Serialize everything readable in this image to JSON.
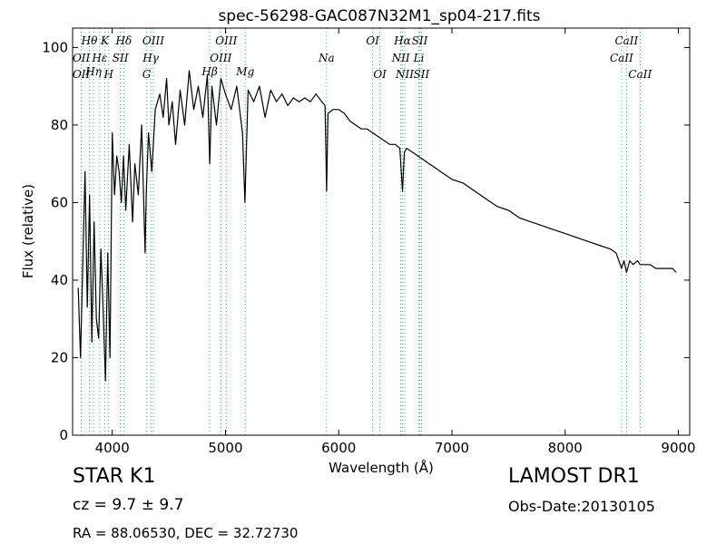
{
  "chart_data": {
    "type": "line",
    "title": "spec-56298-GAC087N32M1_sp04-217.fits",
    "xlabel": "Wavelength (Å)",
    "ylabel": "Flux (relative)",
    "xlim": [
      3650,
      9100
    ],
    "ylim": [
      0,
      105
    ],
    "xticks": [
      4000,
      5000,
      6000,
      7000,
      8000,
      9000
    ],
    "xtick_labels": [
      "4000",
      "5000",
      "6000",
      "7000",
      "8000",
      "9000"
    ],
    "yticks": [
      0,
      20,
      40,
      60,
      80,
      100
    ],
    "ytick_labels": [
      "0",
      "20",
      "40",
      "60",
      "80",
      "100"
    ],
    "grid": false,
    "series": [
      {
        "color": "#000000",
        "x": [
          3700,
          3720,
          3740,
          3760,
          3780,
          3800,
          3820,
          3840,
          3860,
          3880,
          3900,
          3920,
          3940,
          3960,
          3980,
          4000,
          4020,
          4040,
          4060,
          4080,
          4100,
          4120,
          4150,
          4180,
          4200,
          4230,
          4260,
          4290,
          4300,
          4320,
          4350,
          4380,
          4420,
          4450,
          4480,
          4500,
          4530,
          4560,
          4600,
          4640,
          4680,
          4720,
          4760,
          4800,
          4840,
          4861,
          4880,
          4920,
          4960,
          5000,
          5050,
          5100,
          5150,
          5172,
          5183,
          5200,
          5250,
          5300,
          5350,
          5400,
          5450,
          5500,
          5550,
          5600,
          5650,
          5700,
          5750,
          5800,
          5850,
          5880,
          5893,
          5905,
          5950,
          6000,
          6050,
          6100,
          6150,
          6200,
          6250,
          6300,
          6350,
          6400,
          6450,
          6500,
          6540,
          6563,
          6580,
          6600,
          6650,
          6700,
          6750,
          6800,
          6850,
          6900,
          6950,
          7000,
          7100,
          7200,
          7300,
          7400,
          7500,
          7600,
          7700,
          7800,
          7900,
          8000,
          8100,
          8200,
          8300,
          8400,
          8450,
          8498,
          8520,
          8542,
          8570,
          8600,
          8640,
          8662,
          8700,
          8750,
          8800,
          8850,
          8900,
          8950,
          8980
        ],
        "y": [
          38,
          20,
          44,
          68,
          33,
          62,
          24,
          55,
          30,
          25,
          48,
          32,
          14,
          47,
          20,
          78,
          62,
          72,
          68,
          60,
          72,
          58,
          75,
          55,
          70,
          62,
          80,
          47,
          62,
          78,
          68,
          84,
          88,
          82,
          92,
          80,
          86,
          75,
          89,
          80,
          94,
          84,
          90,
          82,
          93,
          70,
          90,
          80,
          92,
          88,
          84,
          90,
          78,
          60,
          72,
          89,
          86,
          90,
          82,
          89,
          86,
          88,
          85,
          87,
          86,
          87,
          86,
          88,
          86,
          85,
          63,
          83,
          84,
          84,
          83,
          81,
          80,
          79,
          79,
          78,
          77,
          76,
          75,
          75,
          74,
          63,
          73,
          74,
          73,
          72,
          71,
          70,
          69,
          68,
          67,
          66,
          65,
          63,
          61,
          59,
          58,
          56,
          55,
          54,
          53,
          52,
          51,
          50,
          49,
          48,
          47,
          43,
          45,
          42,
          45,
          44,
          45,
          44,
          44,
          44,
          43,
          43,
          43,
          43,
          42
        ]
      }
    ],
    "spectral_lines": [
      {
        "label": "Hθ",
        "wavelength": 3798,
        "row": 1
      },
      {
        "label": "K",
        "wavelength": 3934,
        "row": 1
      },
      {
        "label": "Hδ",
        "wavelength": 4102,
        "row": 1
      },
      {
        "label": "OIII",
        "wavelength": 4363,
        "row": 1
      },
      {
        "label": "OIII",
        "wavelength": 5007,
        "row": 1
      },
      {
        "label": "OI",
        "wavelength": 6300,
        "row": 1
      },
      {
        "label": "Hα",
        "wavelength": 6563,
        "row": 1
      },
      {
        "label": "SII",
        "wavelength": 6716,
        "row": 1
      },
      {
        "label": "CaII",
        "wavelength": 8542,
        "row": 1
      },
      {
        "label": "OII",
        "wavelength": 3727,
        "row": 2
      },
      {
        "label": "Hε",
        "wavelength": 3889,
        "row": 2
      },
      {
        "label": "SII",
        "wavelength": 4072,
        "row": 2
      },
      {
        "label": "Hγ",
        "wavelength": 4340,
        "row": 2
      },
      {
        "label": "OIII",
        "wavelength": 4959,
        "row": 2
      },
      {
        "label": "Na",
        "wavelength": 5893,
        "row": 2
      },
      {
        "label": "NII",
        "wavelength": 6548,
        "row": 2
      },
      {
        "label": "Li",
        "wavelength": 6708,
        "row": 2
      },
      {
        "label": "CaII",
        "wavelength": 8498,
        "row": 2
      },
      {
        "label": "Hη",
        "wavelength": 3835,
        "row": 3
      },
      {
        "label": "Hβ",
        "wavelength": 4861,
        "row": 3
      },
      {
        "label": "Mg",
        "wavelength": 5175,
        "row": 3
      },
      {
        "label": "OII",
        "wavelength": 3727,
        "row": 4
      },
      {
        "label": "H",
        "wavelength": 3968,
        "row": 4
      },
      {
        "label": "G",
        "wavelength": 4304,
        "row": 4
      },
      {
        "label": "OI",
        "wavelength": 6364,
        "row": 4
      },
      {
        "label": "NII",
        "wavelength": 6583,
        "row": 4
      },
      {
        "label": "SII",
        "wavelength": 6731,
        "row": 4
      },
      {
        "label": "CaII",
        "wavelength": 8662,
        "row": 4
      }
    ]
  },
  "info": {
    "class_label": "STAR   K1",
    "survey": "LAMOST DR1",
    "cz": "cz = 9.7  ± 9.7",
    "obs_date": "Obs-Date:20130105",
    "radec": "RA = 88.06530, DEC = 32.72730"
  }
}
